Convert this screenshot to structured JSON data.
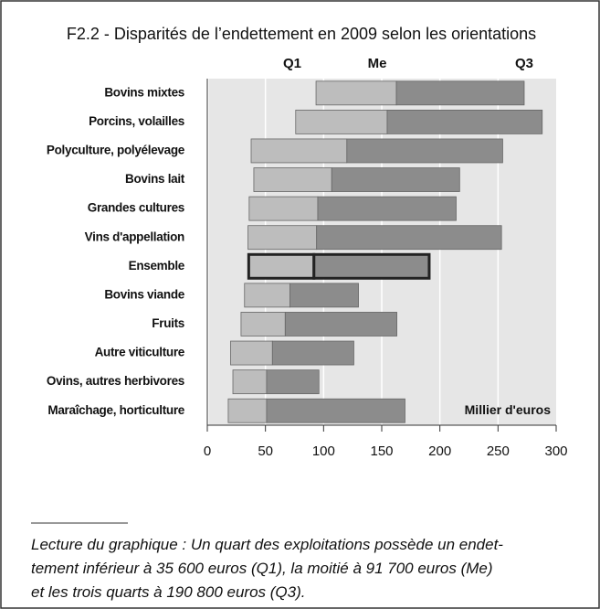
{
  "chart_data": {
    "type": "floating-bar",
    "title": "F2.2 - Disparités de l’endettement en 2009 selon les orientations",
    "categories": [
      "Bovins mixtes",
      "Porcins, volailles",
      "Polyculture, polyélevage",
      "Bovins lait",
      "Grandes cultures",
      "Vins d'appellation",
      "Ensemble",
      "Bovins viande",
      "Fruits",
      "Autre viticulture",
      "Ovins, autres herbivores",
      "Maraîchage, horticulture"
    ],
    "series": [
      {
        "name": "Q1",
        "values": [
          93.5,
          76,
          37.7,
          40,
          36,
          35,
          35.6,
          32,
          29,
          20,
          22,
          18
        ]
      },
      {
        "name": "Me",
        "color": "#bdbdbd",
        "values": [
          162.6,
          154.7,
          120,
          107,
          95,
          94,
          91.7,
          71,
          67,
          56,
          51,
          51
        ]
      },
      {
        "name": "Q3",
        "color": "#8c8c8c",
        "values": [
          272.5,
          288,
          254,
          217,
          214,
          253,
          190.8,
          130,
          163,
          126,
          96,
          170
        ]
      }
    ],
    "highlight_index": 6,
    "axis_label": "Millier d'euros",
    "xlim": [
      0,
      300
    ],
    "xticks": [
      0,
      50,
      100,
      150,
      200,
      250,
      300
    ],
    "grid": true,
    "note": [
      "Lecture du graphique : Un quart des exploitations possède un endet-",
      "tement inférieur à 35 600 euros (Q1), la moitié à 91 700 euros (Me)",
      "et les trois quarts à 190 800 euros (Q3)."
    ]
  }
}
